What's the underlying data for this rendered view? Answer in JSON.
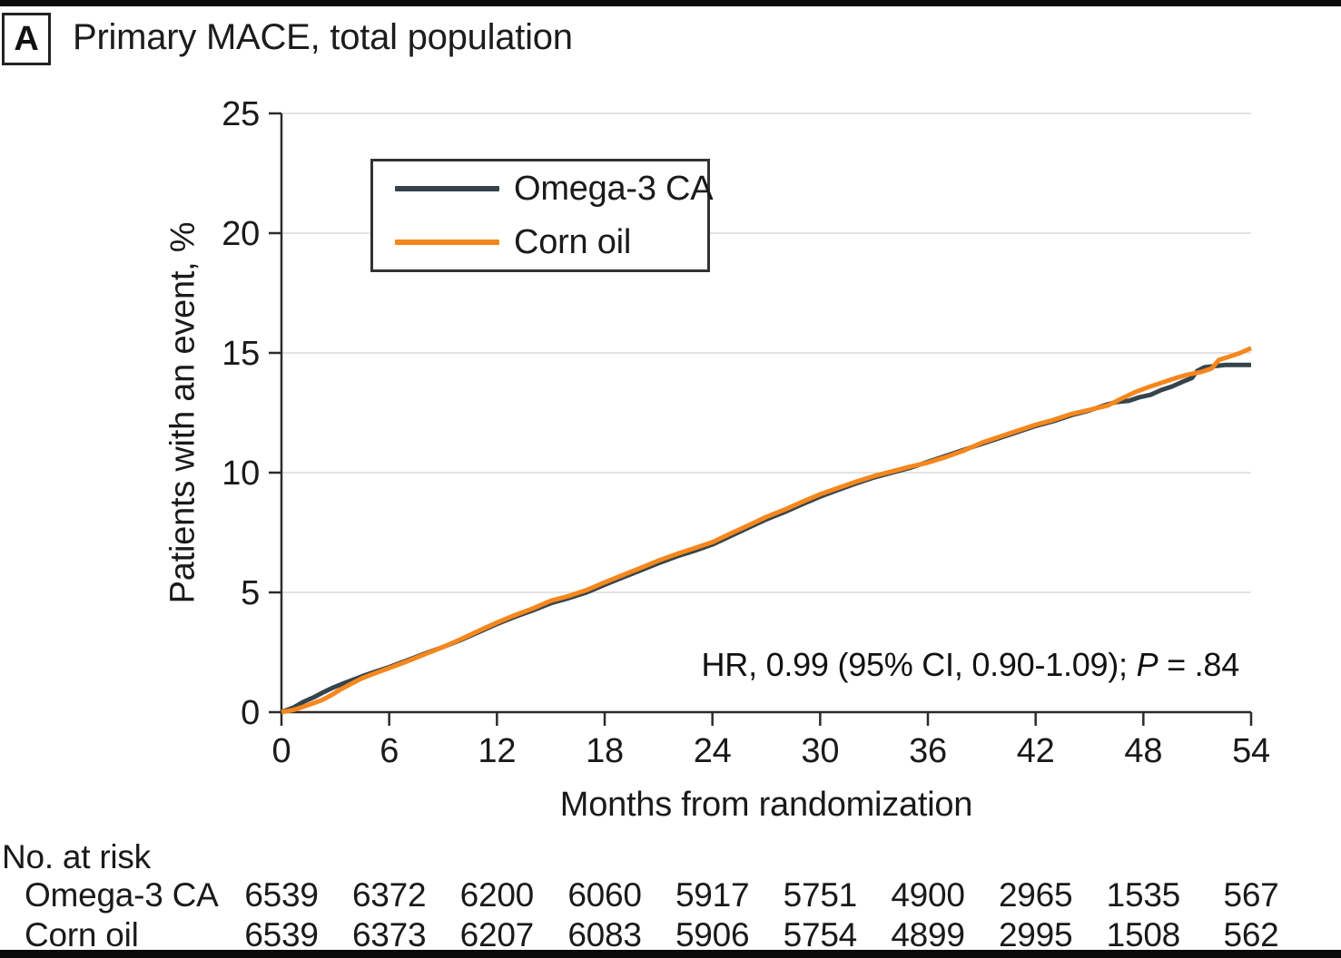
{
  "header": {
    "panel_label": "A",
    "title": "Primary MACE, total population"
  },
  "chart_data": {
    "type": "line",
    "title": "Primary MACE, total population",
    "xlabel": "Months from randomization",
    "ylabel": "Patients with an event, %",
    "xlim": [
      0,
      54
    ],
    "ylim": [
      0,
      25
    ],
    "x_ticks": [
      0,
      6,
      12,
      18,
      24,
      30,
      36,
      42,
      48,
      54
    ],
    "y_ticks": [
      0,
      5,
      10,
      15,
      20,
      25
    ],
    "grid": "horizontal",
    "grid_color": "#e3e3e3",
    "axis_color": "#2b2b2b",
    "legend_position": "upper-left-inside",
    "annotation": "HR, 0.99 (95% CI, 0.90-1.09); P = .84",
    "annotation_parts": {
      "prefix": "HR, 0.99 (95% CI, 0.90-1.09); ",
      "italic": "P",
      "suffix": " = .84"
    },
    "series": [
      {
        "name": "Omega-3 CA",
        "color": "#35444c",
        "points": [
          [
            0,
            0
          ],
          [
            0.7,
            0.2
          ],
          [
            1.2,
            0.42
          ],
          [
            1.8,
            0.62
          ],
          [
            2.3,
            0.82
          ],
          [
            2.8,
            1.0
          ],
          [
            3.3,
            1.15
          ],
          [
            3.8,
            1.3
          ],
          [
            4.5,
            1.5
          ],
          [
            5.2,
            1.68
          ],
          [
            6,
            1.88
          ],
          [
            7,
            2.16
          ],
          [
            8,
            2.45
          ],
          [
            9,
            2.72
          ],
          [
            10,
            3.02
          ],
          [
            11,
            3.35
          ],
          [
            12,
            3.68
          ],
          [
            13,
            3.98
          ],
          [
            14,
            4.25
          ],
          [
            15,
            4.55
          ],
          [
            16,
            4.76
          ],
          [
            17,
            5.0
          ],
          [
            18,
            5.32
          ],
          [
            19,
            5.62
          ],
          [
            20,
            5.92
          ],
          [
            21,
            6.22
          ],
          [
            22,
            6.5
          ],
          [
            23,
            6.74
          ],
          [
            24,
            7.0
          ],
          [
            25,
            7.35
          ],
          [
            26,
            7.7
          ],
          [
            27,
            8.05
          ],
          [
            28,
            8.35
          ],
          [
            29,
            8.68
          ],
          [
            30,
            9.0
          ],
          [
            31,
            9.28
          ],
          [
            32,
            9.55
          ],
          [
            33,
            9.8
          ],
          [
            34,
            10.0
          ],
          [
            35,
            10.2
          ],
          [
            36,
            10.45
          ],
          [
            37,
            10.7
          ],
          [
            38,
            10.95
          ],
          [
            39,
            11.2
          ],
          [
            40,
            11.45
          ],
          [
            41,
            11.7
          ],
          [
            42,
            11.95
          ],
          [
            43,
            12.15
          ],
          [
            44,
            12.4
          ],
          [
            45,
            12.6
          ],
          [
            46,
            12.85
          ],
          [
            46.5,
            12.95
          ],
          [
            47.2,
            13.0
          ],
          [
            47.8,
            13.15
          ],
          [
            48.4,
            13.25
          ],
          [
            49,
            13.45
          ],
          [
            49.6,
            13.6
          ],
          [
            50.2,
            13.8
          ],
          [
            50.7,
            13.95
          ],
          [
            51,
            14.25
          ],
          [
            51.4,
            14.4
          ],
          [
            52,
            14.45
          ],
          [
            52.6,
            14.5
          ],
          [
            54,
            14.5
          ]
        ]
      },
      {
        "name": "Corn oil",
        "color": "#f6871d",
        "points": [
          [
            0,
            0
          ],
          [
            0.7,
            0.1
          ],
          [
            1.2,
            0.22
          ],
          [
            1.8,
            0.38
          ],
          [
            2.3,
            0.52
          ],
          [
            2.8,
            0.72
          ],
          [
            3.3,
            0.95
          ],
          [
            3.8,
            1.15
          ],
          [
            4.5,
            1.42
          ],
          [
            5.2,
            1.62
          ],
          [
            6,
            1.84
          ],
          [
            7,
            2.12
          ],
          [
            8,
            2.42
          ],
          [
            9,
            2.72
          ],
          [
            10,
            3.05
          ],
          [
            11,
            3.4
          ],
          [
            12,
            3.74
          ],
          [
            13,
            4.05
          ],
          [
            14,
            4.33
          ],
          [
            15,
            4.65
          ],
          [
            16,
            4.85
          ],
          [
            17,
            5.1
          ],
          [
            18,
            5.42
          ],
          [
            19,
            5.72
          ],
          [
            20,
            6.02
          ],
          [
            21,
            6.33
          ],
          [
            22,
            6.6
          ],
          [
            23,
            6.85
          ],
          [
            24,
            7.1
          ],
          [
            25,
            7.45
          ],
          [
            26,
            7.8
          ],
          [
            27,
            8.15
          ],
          [
            28,
            8.45
          ],
          [
            29,
            8.78
          ],
          [
            30,
            9.1
          ],
          [
            31,
            9.36
          ],
          [
            32,
            9.62
          ],
          [
            33,
            9.86
          ],
          [
            34,
            10.05
          ],
          [
            35,
            10.25
          ],
          [
            36,
            10.42
          ],
          [
            37,
            10.65
          ],
          [
            38,
            10.92
          ],
          [
            39,
            11.25
          ],
          [
            40,
            11.5
          ],
          [
            41,
            11.75
          ],
          [
            42,
            12.0
          ],
          [
            43,
            12.2
          ],
          [
            44,
            12.45
          ],
          [
            45,
            12.62
          ],
          [
            46,
            12.8
          ],
          [
            46.8,
            13.1
          ],
          [
            47.5,
            13.35
          ],
          [
            48.2,
            13.55
          ],
          [
            49,
            13.75
          ],
          [
            49.8,
            13.95
          ],
          [
            50.5,
            14.1
          ],
          [
            51.2,
            14.2
          ],
          [
            51.8,
            14.35
          ],
          [
            52.2,
            14.7
          ],
          [
            52.8,
            14.85
          ],
          [
            53.4,
            15.0
          ],
          [
            54,
            15.2
          ]
        ]
      }
    ]
  },
  "risk_table": {
    "heading": "No. at risk",
    "rows": [
      {
        "label": "Omega-3 CA",
        "values": [
          6539,
          6372,
          6200,
          6060,
          5917,
          5751,
          4900,
          2965,
          1535,
          567
        ]
      },
      {
        "label": "Corn oil",
        "values": [
          6539,
          6373,
          6207,
          6083,
          5906,
          5754,
          4899,
          2995,
          1508,
          562
        ]
      }
    ]
  }
}
